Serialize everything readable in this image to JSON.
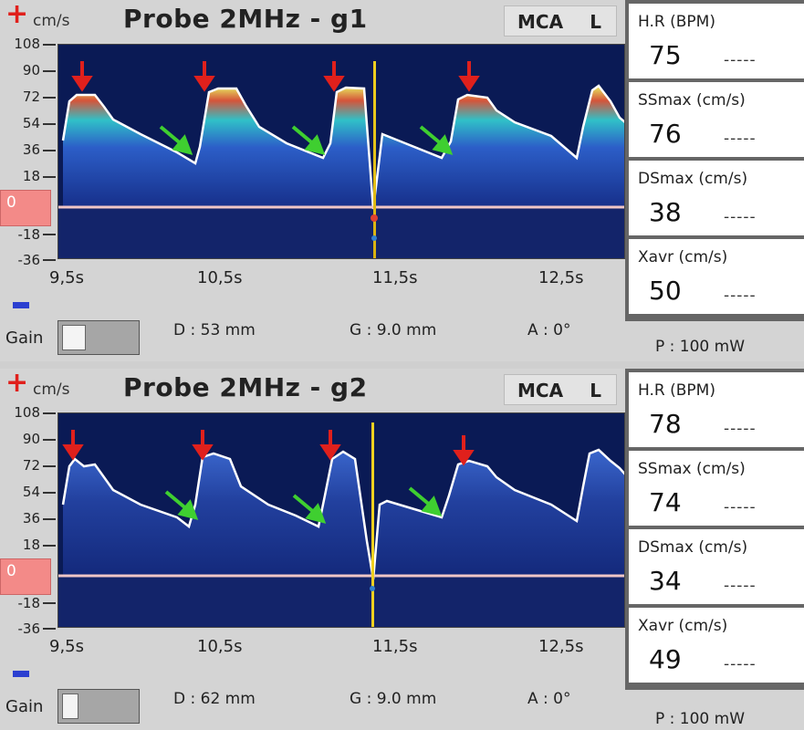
{
  "panels": [
    {
      "plus": "+",
      "unit": "cm/s",
      "probe": "Probe 2MHz - g1",
      "vessel": "MCA",
      "side": "L",
      "y_ticks": [
        "108",
        "90",
        "72",
        "54",
        "36",
        "18",
        "-18",
        "-36"
      ],
      "zero": "0",
      "x_ticks": [
        "9,5s",
        "10,5s",
        "11,5s",
        "12,5s"
      ],
      "gain_label": "Gain",
      "gain_level": 0.35,
      "depth": "D :  53 mm",
      "gate": "G : 9.0 mm",
      "angle": "A : 0°",
      "power": "P :  100 mW",
      "metrics": [
        {
          "label": "H.R (BPM)",
          "value": "75",
          "dash": "-----"
        },
        {
          "label": "SSmax (cm/s)",
          "value": "76",
          "dash": "-----"
        },
        {
          "label": "DSmax (cm/s)",
          "value": "38",
          "dash": "-----"
        },
        {
          "label": "Xavr (cm/s)",
          "value": "50",
          "dash": "-----"
        }
      ]
    },
    {
      "plus": "+",
      "unit": "cm/s",
      "probe": "Probe 2MHz - g2",
      "vessel": "MCA",
      "side": "L",
      "y_ticks": [
        "108",
        "90",
        "72",
        "54",
        "36",
        "18",
        "-18",
        "-36"
      ],
      "zero": "0",
      "x_ticks": [
        "9,5s",
        "10,5s",
        "11,5s",
        "12,5s"
      ],
      "gain_label": "Gain",
      "gain_level": 0.2,
      "depth": "D :  62 mm",
      "gate": "G : 9.0 mm",
      "angle": "A : 0°",
      "power": "P :  100 mW",
      "metrics": [
        {
          "label": "H.R (BPM)",
          "value": "78",
          "dash": "-----"
        },
        {
          "label": "SSmax (cm/s)",
          "value": "74",
          "dash": "-----"
        },
        {
          "label": "DSmax (cm/s)",
          "value": "34",
          "dash": "-----"
        },
        {
          "label": "Xavr (cm/s)",
          "value": "49",
          "dash": "-----"
        }
      ]
    }
  ],
  "colors": {
    "background": "#0a1a55",
    "envelope": "#ffffff",
    "baseline": "#f0c6c6",
    "cursor": "#f0d020",
    "systolic_arrow": "#e0201c",
    "diastolic_arrow": "#3fcf30",
    "zero_box": "#f38a88"
  }
}
